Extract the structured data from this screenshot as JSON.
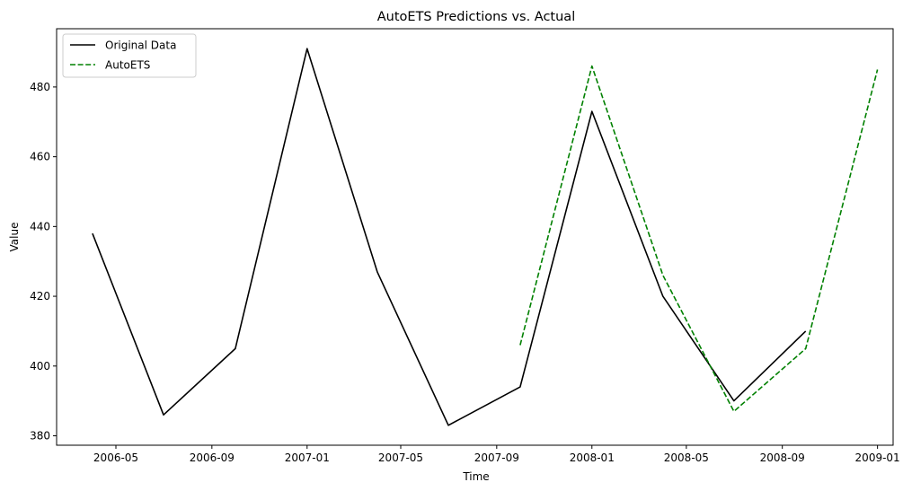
{
  "chart_data": {
    "type": "line",
    "title": "AutoETS Predictions vs. Actual",
    "xlabel": "Time",
    "ylabel": "Value",
    "xlim": [
      "2006-02-14",
      "2009-01-21"
    ],
    "ylim": [
      377.3,
      496.7
    ],
    "x_ticks": [
      "2006-05",
      "2006-09",
      "2007-01",
      "2007-05",
      "2007-09",
      "2008-01",
      "2008-05",
      "2008-09",
      "2009-01"
    ],
    "y_ticks": [
      380,
      400,
      420,
      440,
      460,
      480
    ],
    "grid": false,
    "legend_position": "top-left",
    "series": [
      {
        "name": "Original Data",
        "color": "#000000",
        "style": "solid",
        "x": [
          "2006-04-01",
          "2006-07-01",
          "2006-10-01",
          "2007-01-01",
          "2007-04-01",
          "2007-07-01",
          "2007-10-01",
          "2008-01-01",
          "2008-04-01",
          "2008-07-01",
          "2008-10-01"
        ],
        "values": [
          438,
          386,
          405,
          491,
          427,
          383,
          394,
          473,
          420,
          390,
          410
        ]
      },
      {
        "name": "AutoETS",
        "color": "#008000",
        "style": "dashed",
        "x": [
          "2007-10-01",
          "2008-01-01",
          "2008-04-01",
          "2008-07-01",
          "2008-10-01",
          "2009-01-01"
        ],
        "values": [
          406,
          486,
          426,
          387,
          405,
          485
        ]
      }
    ]
  }
}
